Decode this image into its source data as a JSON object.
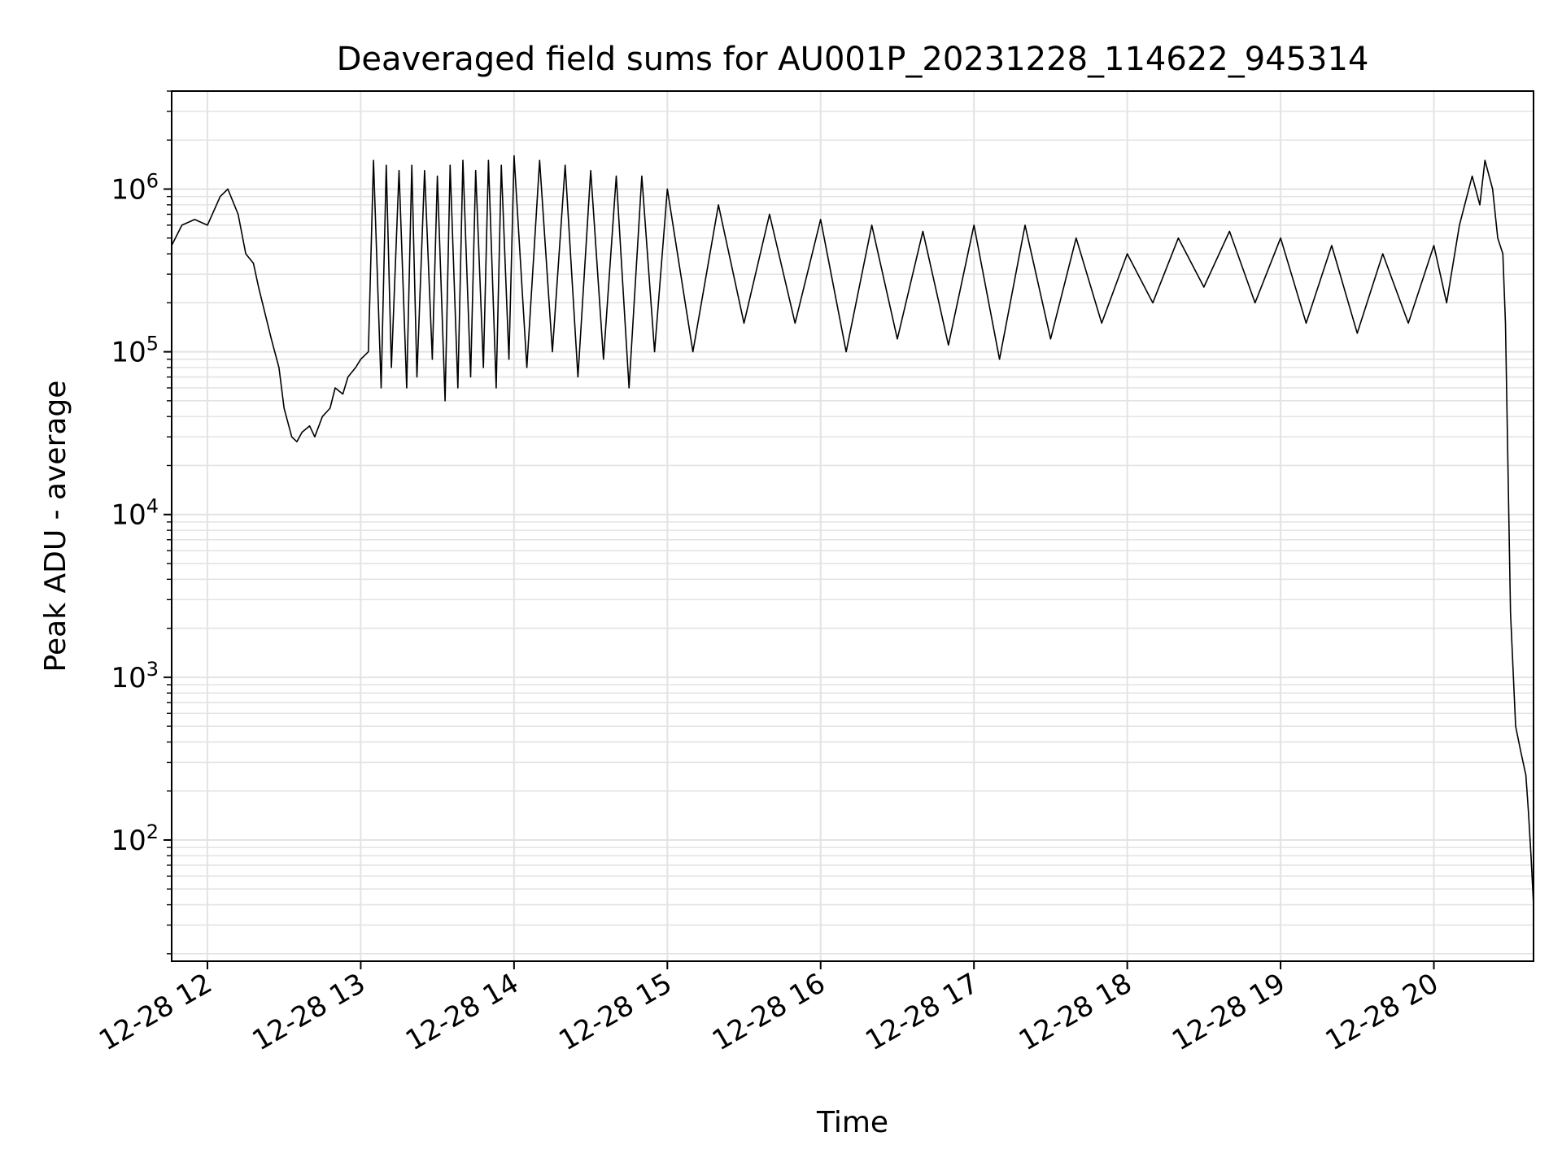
{
  "chart_data": {
    "type": "line",
    "title": "Deaveraged field sums for AU001P_20231228_114622_945314",
    "xlabel": "Time",
    "ylabel": "Peak ADU - average",
    "yscale": "log",
    "grid": true,
    "legend": "none",
    "xlim": [
      "2023-12-28 11:46",
      "2023-12-28 20:39"
    ],
    "ylim": [
      18,
      4000000
    ],
    "x_ticks": [
      {
        "value": "2023-12-28 12:00",
        "label": "12-28 12"
      },
      {
        "value": "2023-12-28 13:00",
        "label": "12-28 13"
      },
      {
        "value": "2023-12-28 14:00",
        "label": "12-28 14"
      },
      {
        "value": "2023-12-28 15:00",
        "label": "12-28 15"
      },
      {
        "value": "2023-12-28 16:00",
        "label": "12-28 16"
      },
      {
        "value": "2023-12-28 17:00",
        "label": "12-28 17"
      },
      {
        "value": "2023-12-28 18:00",
        "label": "12-28 18"
      },
      {
        "value": "2023-12-28 19:00",
        "label": "12-28 19"
      },
      {
        "value": "2023-12-28 20:00",
        "label": "12-28 20"
      }
    ],
    "y_ticks": [
      {
        "value": 100,
        "base": "10",
        "exp": "2"
      },
      {
        "value": 1000,
        "base": "10",
        "exp": "3"
      },
      {
        "value": 10000,
        "base": "10",
        "exp": "4"
      },
      {
        "value": 100000,
        "base": "10",
        "exp": "5"
      },
      {
        "value": 1000000,
        "base": "10",
        "exp": "6"
      }
    ],
    "line_color": "#000000",
    "series": [
      {
        "x": [
          "2023-12-28 11:46",
          "2023-12-28 11:50",
          "2023-12-28 11:55",
          "2023-12-28 12:00",
          "2023-12-28 12:05",
          "2023-12-28 12:08",
          "2023-12-28 12:12",
          "2023-12-28 12:15",
          "2023-12-28 12:18",
          "2023-12-28 12:20",
          "2023-12-28 12:25",
          "2023-12-28 12:28",
          "2023-12-28 12:30",
          "2023-12-28 12:33",
          "2023-12-28 12:35",
          "2023-12-28 12:37",
          "2023-12-28 12:40",
          "2023-12-28 12:42",
          "2023-12-28 12:45",
          "2023-12-28 12:48",
          "2023-12-28 12:50",
          "2023-12-28 12:53",
          "2023-12-28 12:55",
          "2023-12-28 12:58",
          "2023-12-28 13:00",
          "2023-12-28 13:03",
          "2023-12-28 13:05",
          "2023-12-28 13:08",
          "2023-12-28 13:10",
          "2023-12-28 13:12",
          "2023-12-28 13:15",
          "2023-12-28 13:18",
          "2023-12-28 13:20",
          "2023-12-28 13:22",
          "2023-12-28 13:25",
          "2023-12-28 13:28",
          "2023-12-28 13:30",
          "2023-12-28 13:33",
          "2023-12-28 13:35",
          "2023-12-28 13:38",
          "2023-12-28 13:40",
          "2023-12-28 13:43",
          "2023-12-28 13:45",
          "2023-12-28 13:48",
          "2023-12-28 13:50",
          "2023-12-28 13:53",
          "2023-12-28 13:55",
          "2023-12-28 13:58",
          "2023-12-28 14:00",
          "2023-12-28 14:05",
          "2023-12-28 14:10",
          "2023-12-28 14:15",
          "2023-12-28 14:20",
          "2023-12-28 14:25",
          "2023-12-28 14:30",
          "2023-12-28 14:35",
          "2023-12-28 14:40",
          "2023-12-28 14:45",
          "2023-12-28 14:50",
          "2023-12-28 14:55",
          "2023-12-28 15:00",
          "2023-12-28 15:10",
          "2023-12-28 15:20",
          "2023-12-28 15:30",
          "2023-12-28 15:40",
          "2023-12-28 15:50",
          "2023-12-28 16:00",
          "2023-12-28 16:10",
          "2023-12-28 16:20",
          "2023-12-28 16:30",
          "2023-12-28 16:40",
          "2023-12-28 16:50",
          "2023-12-28 17:00",
          "2023-12-28 17:10",
          "2023-12-28 17:20",
          "2023-12-28 17:30",
          "2023-12-28 17:40",
          "2023-12-28 17:50",
          "2023-12-28 18:00",
          "2023-12-28 18:10",
          "2023-12-28 18:20",
          "2023-12-28 18:30",
          "2023-12-28 18:40",
          "2023-12-28 18:50",
          "2023-12-28 19:00",
          "2023-12-28 19:10",
          "2023-12-28 19:20",
          "2023-12-28 19:30",
          "2023-12-28 19:40",
          "2023-12-28 19:50",
          "2023-12-28 20:00",
          "2023-12-28 20:05",
          "2023-12-28 20:10",
          "2023-12-28 20:15",
          "2023-12-28 20:18",
          "2023-12-28 20:20",
          "2023-12-28 20:23",
          "2023-12-28 20:25",
          "2023-12-28 20:27",
          "2023-12-28 20:28",
          "2023-12-28 20:30",
          "2023-12-28 20:32",
          "2023-12-28 20:34",
          "2023-12-28 20:36",
          "2023-12-28 20:37",
          "2023-12-28 20:38",
          "2023-12-28 20:39"
        ],
        "y": [
          450000,
          600000,
          650000,
          600000,
          900000,
          1000000,
          700000,
          400000,
          350000,
          250000,
          120000,
          80000,
          45000,
          30000,
          28000,
          32000,
          35000,
          30000,
          40000,
          45000,
          60000,
          55000,
          70000,
          80000,
          90000,
          100000,
          1500000,
          60000,
          1400000,
          80000,
          1300000,
          60000,
          1400000,
          70000,
          1300000,
          90000,
          1200000,
          50000,
          1400000,
          60000,
          1500000,
          70000,
          1300000,
          80000,
          1500000,
          60000,
          1400000,
          90000,
          1600000,
          80000,
          1500000,
          100000,
          1400000,
          70000,
          1300000,
          90000,
          1200000,
          60000,
          1200000,
          100000,
          1000000,
          100000,
          800000,
          150000,
          700000,
          150000,
          650000,
          100000,
          600000,
          120000,
          550000,
          110000,
          600000,
          90000,
          600000,
          120000,
          500000,
          150000,
          400000,
          200000,
          500000,
          250000,
          550000,
          200000,
          500000,
          150000,
          450000,
          130000,
          400000,
          150000,
          450000,
          200000,
          600000,
          1200000,
          800000,
          1500000,
          1000000,
          500000,
          400000,
          150000,
          2500,
          500,
          350,
          250,
          150,
          80,
          40
        ]
      }
    ]
  }
}
